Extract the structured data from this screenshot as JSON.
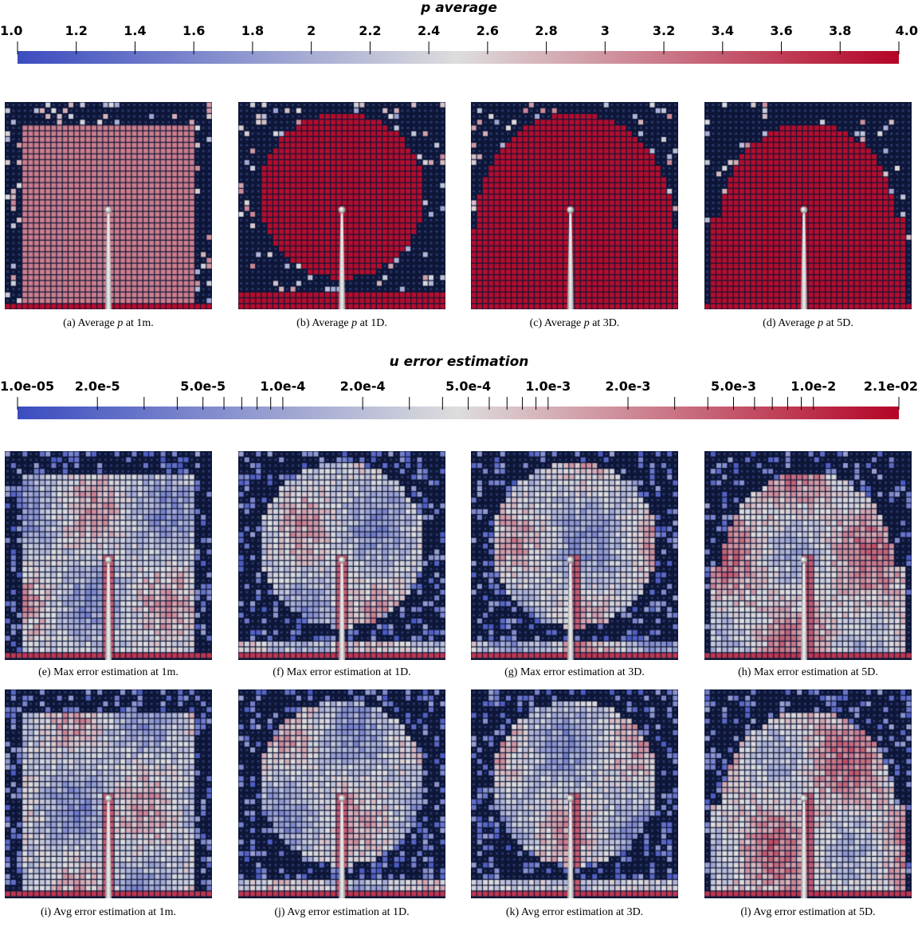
{
  "colorbars": [
    {
      "title": "p average",
      "ticks": [
        "1.0",
        "1.2",
        "1.4",
        "1.6",
        "1.8",
        "2",
        "2.2",
        "2.4",
        "2.6",
        "2.8",
        "3",
        "3.2",
        "3.4",
        "3.6",
        "3.8",
        "4.0"
      ]
    },
    {
      "title": "u error estimation",
      "ticks": [
        "1.0e-05",
        "2.0e-5",
        "5.0e-5",
        "1.0e-4",
        "2.0e-4",
        "5.0e-4",
        "1.0e-3",
        "2.0e-3",
        "5.0e-3",
        "1.0e-2",
        "2.1e-02"
      ]
    }
  ],
  "colormap": {
    "low": "#3b4cc0",
    "mid": "#dddddd",
    "high": "#b40426",
    "background": "#0d1637"
  },
  "panels": [
    {
      "id": "a",
      "pre": "(a) Average ",
      "var": "p",
      "post": " at 1m.",
      "kind": "p",
      "shape": "square"
    },
    {
      "id": "b",
      "pre": "(b) Average ",
      "var": "p",
      "post": " at 1D.",
      "kind": "p",
      "shape": "circle"
    },
    {
      "id": "c",
      "pre": "(c) Average ",
      "var": "p",
      "post": " at 3D.",
      "kind": "p",
      "shape": "dome"
    },
    {
      "id": "d",
      "pre": "(d) Average ",
      "var": "p",
      "post": " at 5D.",
      "kind": "p",
      "shape": "dome2"
    },
    {
      "id": "e",
      "pre": "(e) Max error estimation at 1m.",
      "var": "",
      "post": "",
      "kind": "e",
      "shape": "square"
    },
    {
      "id": "f",
      "pre": "(f) Max error estimation at 1D.",
      "var": "",
      "post": "",
      "kind": "e",
      "shape": "circle"
    },
    {
      "id": "g",
      "pre": "(g) Max error estimation at 3D.",
      "var": "",
      "post": "",
      "kind": "e",
      "shape": "circle"
    },
    {
      "id": "h",
      "pre": "(h) Max error estimation at 5D.",
      "var": "",
      "post": "",
      "kind": "e",
      "shape": "dome2"
    },
    {
      "id": "i",
      "pre": "(i) Avg error estimation at 1m.",
      "var": "",
      "post": "",
      "kind": "e",
      "shape": "square"
    },
    {
      "id": "j",
      "pre": "(j) Avg error estimation at 1D.",
      "var": "",
      "post": "",
      "kind": "e",
      "shape": "circle"
    },
    {
      "id": "k",
      "pre": "(k) Avg error estimation at 3D.",
      "var": "",
      "post": "",
      "kind": "e",
      "shape": "circle"
    },
    {
      "id": "l",
      "pre": "(l) Avg error estimation at 5D.",
      "var": "",
      "post": "",
      "kind": "e",
      "shape": "dome2"
    }
  ]
}
